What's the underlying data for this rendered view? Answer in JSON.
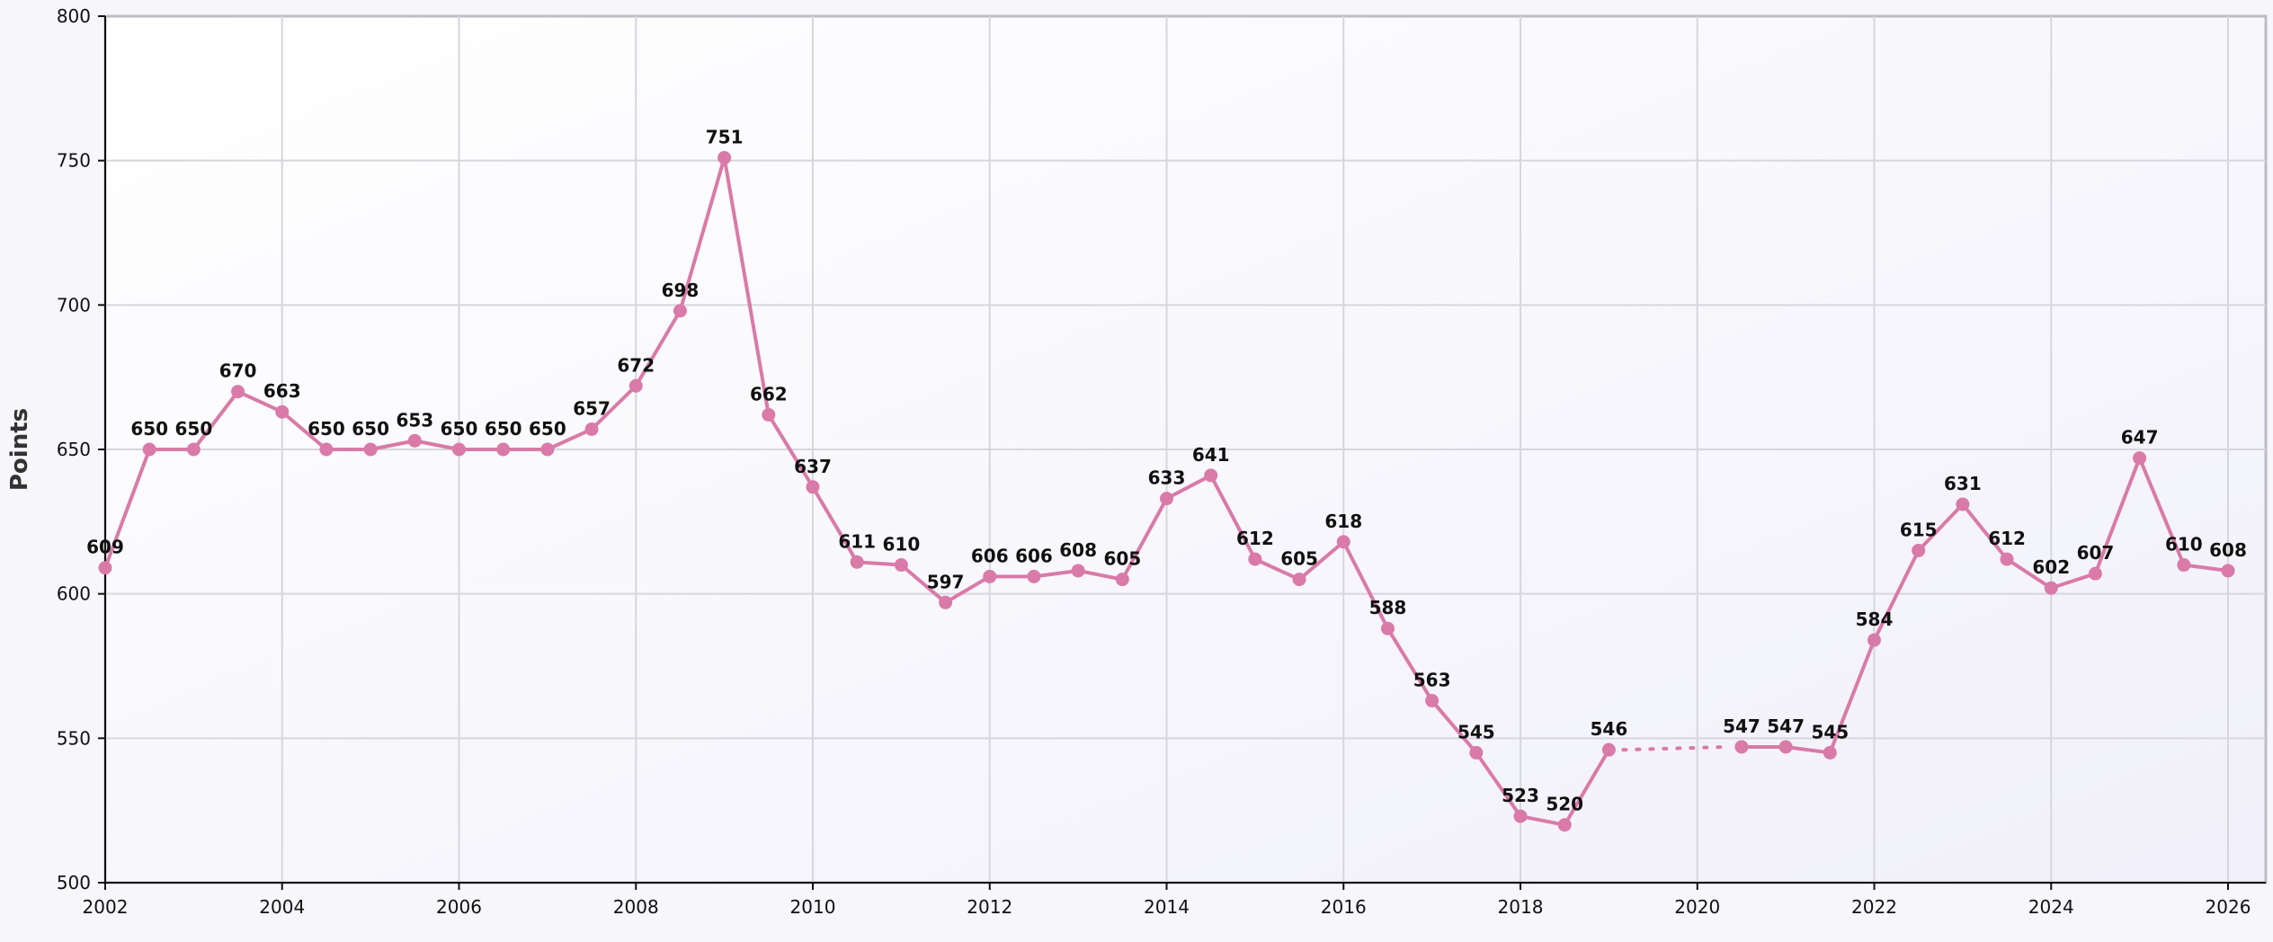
{
  "chart_data": {
    "type": "line",
    "title": "",
    "xlabel": "",
    "ylabel": "Points",
    "xlim": [
      2002,
      2026.2
    ],
    "ylim": [
      500,
      800
    ],
    "x_ticks": [
      2002,
      2004,
      2006,
      2008,
      2010,
      2012,
      2014,
      2016,
      2018,
      2020,
      2022,
      2024,
      2026
    ],
    "y_ticks": [
      500,
      550,
      600,
      650,
      700,
      750,
      800
    ],
    "grid": true,
    "legend": "none",
    "line_color": "#d97aa8",
    "gap_style": "dotted",
    "series": [
      {
        "points": [
          {
            "x": 2002.0,
            "y": 609
          },
          {
            "x": 2002.5,
            "y": 650
          },
          {
            "x": 2003.0,
            "y": 650
          },
          {
            "x": 2003.5,
            "y": 670
          },
          {
            "x": 2004.0,
            "y": 663
          },
          {
            "x": 2004.5,
            "y": 650
          },
          {
            "x": 2005.0,
            "y": 650
          },
          {
            "x": 2005.5,
            "y": 653
          },
          {
            "x": 2006.0,
            "y": 650
          },
          {
            "x": 2006.5,
            "y": 650
          },
          {
            "x": 2007.0,
            "y": 650
          },
          {
            "x": 2007.5,
            "y": 657
          },
          {
            "x": 2008.0,
            "y": 672
          },
          {
            "x": 2008.5,
            "y": 698
          },
          {
            "x": 2009.0,
            "y": 751
          },
          {
            "x": 2009.5,
            "y": 662
          },
          {
            "x": 2010.0,
            "y": 637
          },
          {
            "x": 2010.5,
            "y": 611
          },
          {
            "x": 2011.0,
            "y": 610
          },
          {
            "x": 2011.5,
            "y": 597
          },
          {
            "x": 2012.0,
            "y": 606
          },
          {
            "x": 2012.5,
            "y": 606
          },
          {
            "x": 2013.0,
            "y": 608
          },
          {
            "x": 2013.5,
            "y": 605
          },
          {
            "x": 2014.0,
            "y": 633
          },
          {
            "x": 2014.5,
            "y": 641
          },
          {
            "x": 2015.0,
            "y": 612
          },
          {
            "x": 2015.5,
            "y": 605
          },
          {
            "x": 2016.0,
            "y": 618
          },
          {
            "x": 2016.5,
            "y": 588
          },
          {
            "x": 2017.0,
            "y": 563
          },
          {
            "x": 2017.5,
            "y": 545
          },
          {
            "x": 2018.0,
            "y": 523
          },
          {
            "x": 2018.5,
            "y": 520
          },
          {
            "x": 2019.0,
            "y": 546
          },
          {
            "x": 2020.5,
            "y": 547,
            "gap_before": true
          },
          {
            "x": 2021.0,
            "y": 547
          },
          {
            "x": 2021.5,
            "y": 545
          },
          {
            "x": 2022.0,
            "y": 584
          },
          {
            "x": 2022.5,
            "y": 615
          },
          {
            "x": 2023.0,
            "y": 631
          },
          {
            "x": 2023.5,
            "y": 612
          },
          {
            "x": 2024.0,
            "y": 602
          },
          {
            "x": 2024.5,
            "y": 607
          },
          {
            "x": 2025.0,
            "y": 647
          },
          {
            "x": 2025.5,
            "y": 610
          },
          {
            "x": 2026.0,
            "y": 608
          }
        ]
      }
    ]
  }
}
